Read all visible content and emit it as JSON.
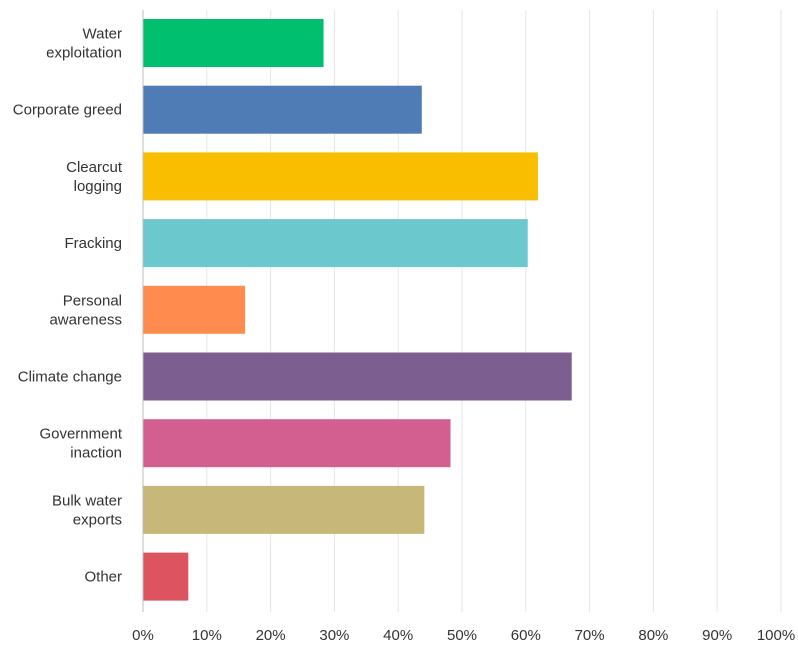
{
  "chart_data": {
    "type": "bar",
    "orientation": "horizontal",
    "categories": [
      [
        "Water",
        "exploitation"
      ],
      [
        "Corporate greed"
      ],
      [
        "Clearcut",
        "logging"
      ],
      [
        "Fracking"
      ],
      [
        "Personal",
        "awareness"
      ],
      [
        "Climate change"
      ],
      [
        "Government",
        "inaction"
      ],
      [
        "Bulk water",
        "exports"
      ],
      [
        "Other"
      ]
    ],
    "values": [
      28.3,
      43.7,
      61.9,
      60.3,
      16.0,
      67.2,
      48.2,
      44.1,
      7.1
    ],
    "colors": [
      "#00bf6f",
      "#507cb6",
      "#f9be00",
      "#6bc8cd",
      "#ff8b4f",
      "#7d5e90",
      "#d25f90",
      "#c7b879",
      "#dd5360"
    ],
    "xlim": [
      0,
      100
    ],
    "xticks": [
      "0%",
      "10%",
      "20%",
      "30%",
      "40%",
      "50%",
      "60%",
      "70%",
      "80%",
      "90%",
      "100%"
    ],
    "grid": true,
    "legend": "none",
    "title": "",
    "xlabel": "",
    "ylabel": ""
  }
}
